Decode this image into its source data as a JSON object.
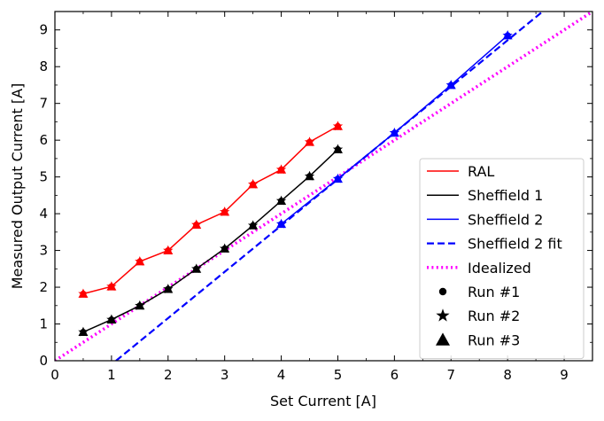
{
  "chart_data": {
    "type": "line",
    "xlabel": "Set Current [A]",
    "ylabel": "Measured Output Current [A]",
    "xlim": [
      0,
      9.5
    ],
    "ylim": [
      0,
      9.5
    ],
    "xticks": [
      0,
      1,
      2,
      3,
      4,
      5,
      6,
      7,
      8,
      9
    ],
    "yticks": [
      0,
      1,
      2,
      3,
      4,
      5,
      6,
      7,
      8,
      9
    ],
    "legend_position": "lower-right",
    "series": [
      {
        "name": "RAL",
        "color": "#ff0000",
        "style": "solid",
        "markers": "run",
        "x": [
          0.5,
          1.0,
          1.5,
          2.0,
          2.5,
          3.0,
          3.5,
          4.0,
          4.5,
          5.0
        ],
        "y": [
          1.82,
          2.02,
          2.7,
          3.0,
          3.7,
          4.05,
          4.8,
          5.2,
          5.95,
          6.38
        ]
      },
      {
        "name": "Sheffield 1",
        "color": "#000000",
        "style": "solid",
        "markers": "run",
        "x": [
          0.5,
          1.0,
          1.5,
          2.0,
          2.5,
          3.0,
          3.5,
          4.0,
          4.5,
          5.0
        ],
        "y": [
          0.78,
          1.12,
          1.5,
          1.95,
          2.5,
          3.05,
          3.68,
          4.35,
          5.02,
          5.75
        ]
      },
      {
        "name": "Sheffield 2",
        "color": "#0000ff",
        "style": "solid",
        "markers": "run",
        "x": [
          4.0,
          5.0,
          6.0,
          7.0,
          8.0
        ],
        "y": [
          3.72,
          4.95,
          6.2,
          7.5,
          8.85
        ]
      },
      {
        "name": "Sheffield 2 fit",
        "color": "#0000ff",
        "style": "dashed",
        "markers": "none",
        "x": [
          1.08,
          8.62
        ],
        "y": [
          0.0,
          9.5
        ]
      },
      {
        "name": "Idealized",
        "color": "#ff00ff",
        "style": "dotted",
        "markers": "none",
        "x": [
          0.0,
          9.5
        ],
        "y": [
          0.0,
          9.5
        ]
      }
    ],
    "legend": [
      {
        "label": "RAL",
        "kind": "line",
        "color": "#ff0000",
        "style": "solid"
      },
      {
        "label": "Sheffield 1",
        "kind": "line",
        "color": "#000000",
        "style": "solid"
      },
      {
        "label": "Sheffield 2",
        "kind": "line",
        "color": "#0000ff",
        "style": "solid"
      },
      {
        "label": "Sheffield 2 fit",
        "kind": "line",
        "color": "#0000ff",
        "style": "dashed"
      },
      {
        "label": "Idealized",
        "kind": "line",
        "color": "#ff00ff",
        "style": "dotted"
      },
      {
        "label": "Run #1",
        "kind": "marker",
        "marker": "circle",
        "color": "#000000"
      },
      {
        "label": "Run #2",
        "kind": "marker",
        "marker": "star",
        "color": "#000000"
      },
      {
        "label": "Run #3",
        "kind": "marker",
        "marker": "triangle",
        "color": "#000000"
      }
    ]
  }
}
